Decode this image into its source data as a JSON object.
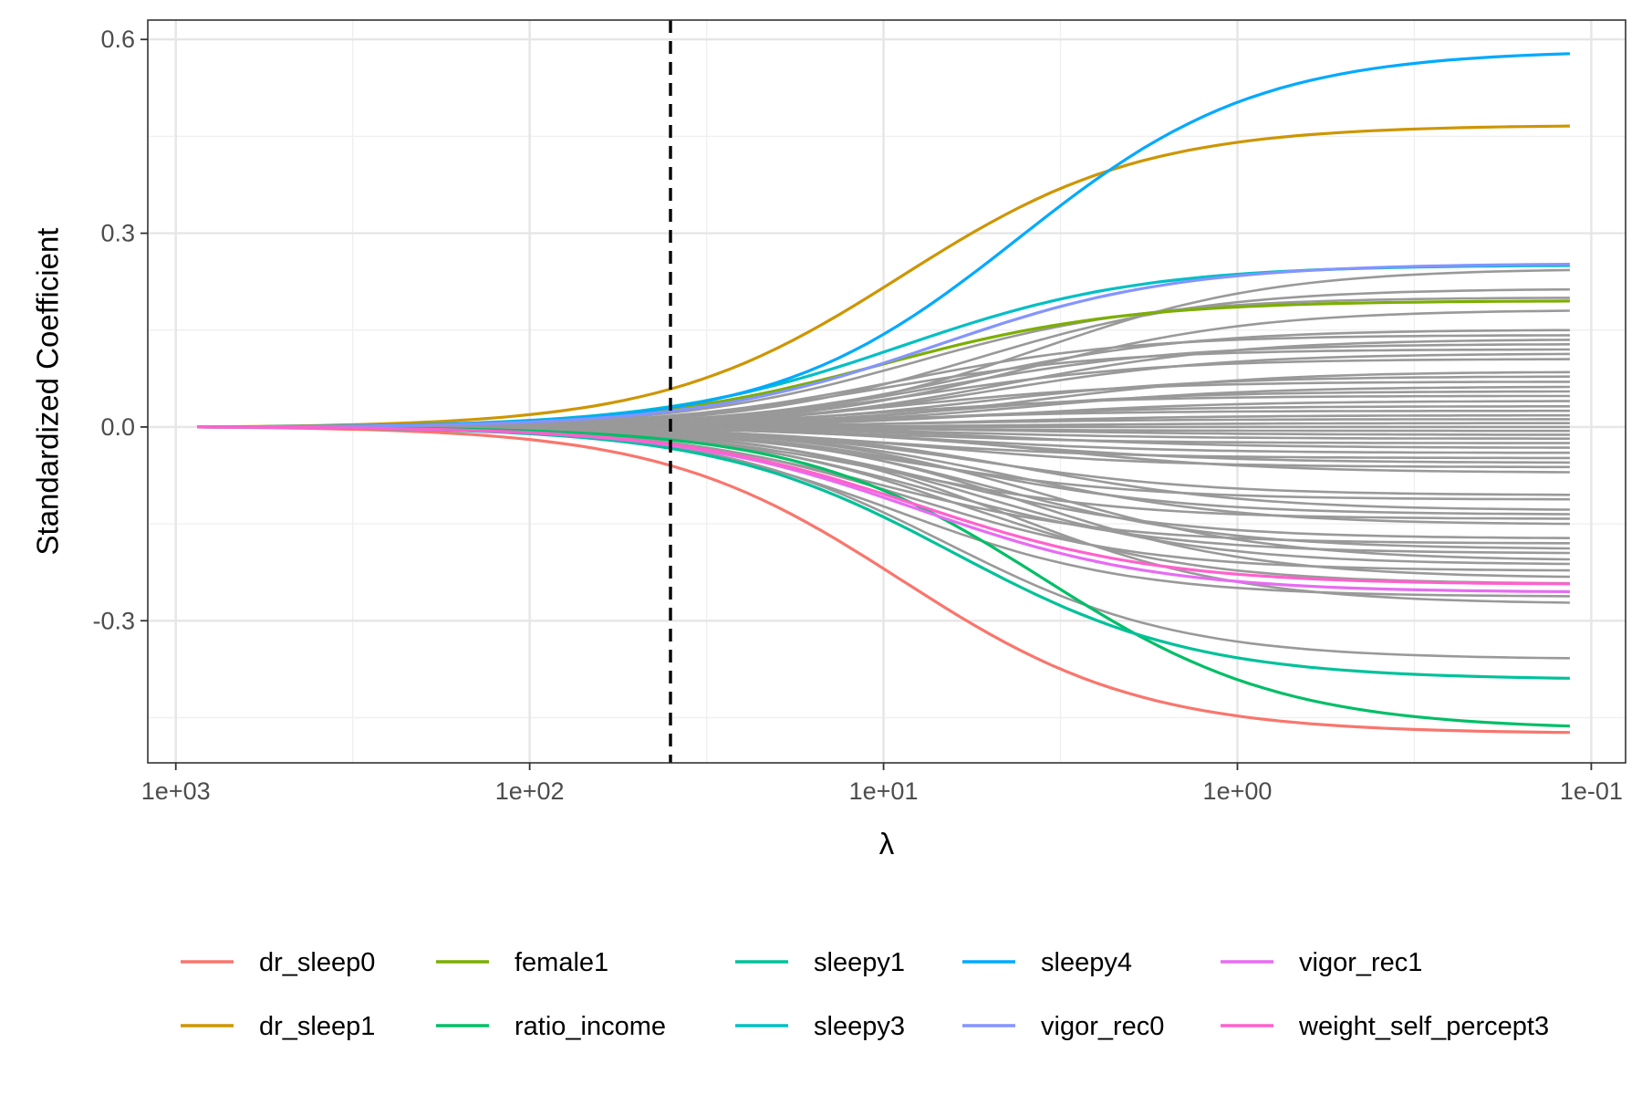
{
  "chart_data": {
    "type": "line",
    "title": "",
    "xlabel": "λ",
    "ylabel": "Standardized Coefficient",
    "x_scale": "log10-reversed",
    "xlim": [
      1200,
      0.08
    ],
    "ylim": [
      -0.52,
      0.63
    ],
    "x_ticks": [
      {
        "value": 1000,
        "label": "1e+03"
      },
      {
        "value": 100,
        "label": "1e+02"
      },
      {
        "value": 10,
        "label": "1e+01"
      },
      {
        "value": 1,
        "label": "1e+00"
      },
      {
        "value": 0.1,
        "label": "1e-01"
      }
    ],
    "y_ticks": [
      {
        "value": 0.6,
        "label": "0.6"
      },
      {
        "value": 0.3,
        "label": "0.3"
      },
      {
        "value": 0.0,
        "label": "0.0"
      },
      {
        "value": -0.3,
        "label": "-0.3"
      }
    ],
    "grid": true,
    "lambda_start": 870,
    "lambda_end": 0.115,
    "cv_lambda_line": {
      "value": 40,
      "style": "dashed",
      "color": "#000000"
    },
    "highlighted_series": [
      {
        "name": "dr_sleep0",
        "color": "#F8766D",
        "final": -0.473,
        "at_cv_lambda": -0.093
      },
      {
        "name": "dr_sleep1",
        "color": "#CD9600",
        "final": 0.466,
        "at_cv_lambda": 0.093
      },
      {
        "name": "female1",
        "color": "#7CAE00",
        "final": 0.195,
        "at_cv_lambda": 0.048
      },
      {
        "name": "ratio_income",
        "color": "#00BE67",
        "final": -0.463,
        "at_cv_lambda": -0.058
      },
      {
        "name": "sleepy1",
        "color": "#00C19A",
        "final": -0.389,
        "at_cv_lambda": -0.064
      },
      {
        "name": "sleepy3",
        "color": "#00BFC4",
        "final": 0.25,
        "at_cv_lambda": 0.055
      },
      {
        "name": "sleepy4",
        "color": "#00A9FF",
        "final": 0.578,
        "at_cv_lambda": 0.073
      },
      {
        "name": "vigor_rec0",
        "color": "#8494FF",
        "final": 0.252,
        "at_cv_lambda": 0.046
      },
      {
        "name": "vigor_rec1",
        "color": "#E76BF3",
        "final": -0.255,
        "at_cv_lambda": -0.045
      },
      {
        "name": "weight_self_percept3",
        "color": "#FF61CC",
        "final": -0.243,
        "at_cv_lambda": -0.045
      }
    ],
    "other_series_color": "#999999",
    "other_series_finals": [
      0.243,
      0.213,
      0.2,
      0.18,
      0.15,
      0.142,
      0.135,
      0.128,
      0.12,
      0.113,
      0.105,
      0.085,
      0.078,
      0.07,
      0.062,
      0.055,
      0.048,
      0.04,
      0.032,
      0.025,
      0.018,
      0.012,
      0.006,
      0.0,
      -0.006,
      -0.012,
      -0.018,
      -0.025,
      -0.032,
      -0.04,
      -0.048,
      -0.055,
      -0.062,
      -0.07,
      -0.105,
      -0.112,
      -0.128,
      -0.135,
      -0.142,
      -0.15,
      -0.172,
      -0.18,
      -0.188,
      -0.195,
      -0.205,
      -0.212,
      -0.222,
      -0.232,
      -0.242,
      -0.262,
      -0.272,
      -0.358
    ],
    "legend": {
      "position": "bottom",
      "columns": 5,
      "rows": 2,
      "entries": [
        "dr_sleep0",
        "dr_sleep1",
        "female1",
        "ratio_income",
        "sleepy1",
        "sleepy3",
        "sleepy4",
        "vigor_rec0",
        "vigor_rec1",
        "weight_self_percept3"
      ]
    }
  }
}
